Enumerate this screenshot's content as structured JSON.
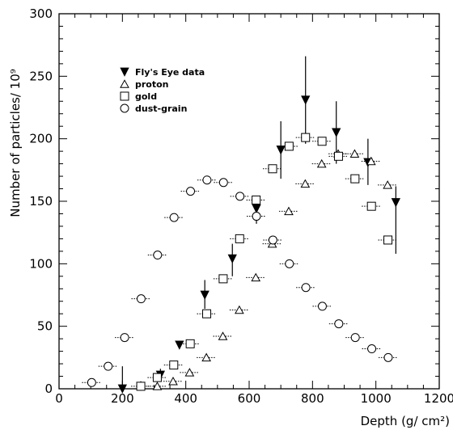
{
  "chart_data": {
    "type": "scatter",
    "title": "",
    "xlabel": "Depth (g/ cm²)",
    "ylabel": "Number of particles/ 10⁹",
    "xlim": [
      0,
      1200
    ],
    "ylim": [
      0,
      300
    ],
    "x_ticks": [
      0,
      200,
      400,
      600,
      800,
      1000,
      1200
    ],
    "y_ticks": [
      0,
      50,
      100,
      150,
      200,
      250,
      300
    ],
    "grid": false,
    "legend_position": "top-left",
    "series": [
      {
        "name": "Fly's Eye data",
        "marker": "triangle-down-filled",
        "points": [
          {
            "x": 200,
            "y": 0,
            "ylow": 0,
            "yhigh": 18
          },
          {
            "x": 258,
            "y": 2,
            "ylow": 0,
            "yhigh": 6
          },
          {
            "x": 320,
            "y": 11,
            "ylow": 6,
            "yhigh": 16
          },
          {
            "x": 380,
            "y": 35,
            "ylow": 33,
            "yhigh": 38
          },
          {
            "x": 460,
            "y": 75,
            "ylow": 64,
            "yhigh": 87
          },
          {
            "x": 547,
            "y": 104,
            "ylow": 90,
            "yhigh": 116
          },
          {
            "x": 623,
            "y": 144,
            "ylow": 132,
            "yhigh": 154
          },
          {
            "x": 700,
            "y": 191,
            "ylow": 168,
            "yhigh": 214
          },
          {
            "x": 778,
            "y": 231,
            "ylow": 196,
            "yhigh": 266
          },
          {
            "x": 875,
            "y": 205,
            "ylow": 180,
            "yhigh": 230
          },
          {
            "x": 975,
            "y": 181,
            "ylow": 163,
            "yhigh": 200
          },
          {
            "x": 1063,
            "y": 149,
            "ylow": 108,
            "yhigh": 162
          }
        ]
      },
      {
        "name": "proton",
        "marker": "triangle-up-open",
        "points": [
          {
            "x": 310,
            "y": 2
          },
          {
            "x": 360,
            "y": 6
          },
          {
            "x": 412,
            "y": 13
          },
          {
            "x": 465,
            "y": 25
          },
          {
            "x": 517,
            "y": 42
          },
          {
            "x": 569,
            "y": 63
          },
          {
            "x": 621,
            "y": 89
          },
          {
            "x": 673,
            "y": 116
          },
          {
            "x": 725,
            "y": 142
          },
          {
            "x": 777,
            "y": 164
          },
          {
            "x": 829,
            "y": 180
          },
          {
            "x": 881,
            "y": 188
          },
          {
            "x": 933,
            "y": 188
          },
          {
            "x": 985,
            "y": 182
          },
          {
            "x": 1037,
            "y": 163
          }
        ]
      },
      {
        "name": "gold",
        "marker": "square-open",
        "points": [
          {
            "x": 258,
            "y": 2
          },
          {
            "x": 310,
            "y": 9
          },
          {
            "x": 362,
            "y": 19
          },
          {
            "x": 414,
            "y": 36
          },
          {
            "x": 466,
            "y": 60
          },
          {
            "x": 518,
            "y": 88
          },
          {
            "x": 570,
            "y": 120
          },
          {
            "x": 622,
            "y": 151
          },
          {
            "x": 674,
            "y": 176
          },
          {
            "x": 726,
            "y": 194
          },
          {
            "x": 778,
            "y": 201
          },
          {
            "x": 830,
            "y": 198
          },
          {
            "x": 882,
            "y": 186
          },
          {
            "x": 934,
            "y": 168
          },
          {
            "x": 986,
            "y": 146
          },
          {
            "x": 1038,
            "y": 119
          }
        ]
      },
      {
        "name": "dust-grain",
        "marker": "circle-open",
        "points": [
          {
            "x": 103,
            "y": 5
          },
          {
            "x": 155,
            "y": 18
          },
          {
            "x": 207,
            "y": 41
          },
          {
            "x": 259,
            "y": 72
          },
          {
            "x": 311,
            "y": 107
          },
          {
            "x": 363,
            "y": 137
          },
          {
            "x": 415,
            "y": 158
          },
          {
            "x": 467,
            "y": 167
          },
          {
            "x": 519,
            "y": 165
          },
          {
            "x": 571,
            "y": 154
          },
          {
            "x": 623,
            "y": 138
          },
          {
            "x": 675,
            "y": 119
          },
          {
            "x": 727,
            "y": 100
          },
          {
            "x": 779,
            "y": 81
          },
          {
            "x": 831,
            "y": 66
          },
          {
            "x": 883,
            "y": 52
          },
          {
            "x": 935,
            "y": 41
          },
          {
            "x": 987,
            "y": 32
          },
          {
            "x": 1039,
            "y": 25
          }
        ]
      }
    ]
  }
}
